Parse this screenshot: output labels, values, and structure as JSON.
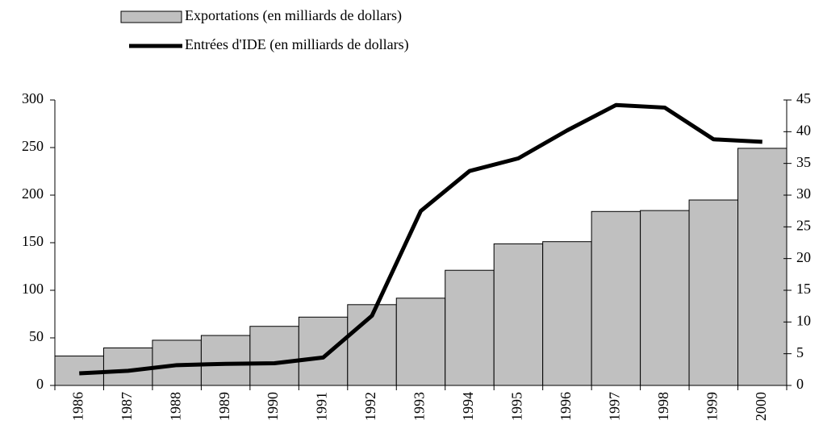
{
  "chart_data": {
    "type": "bar",
    "categories": [
      "1986",
      "1987",
      "1988",
      "1989",
      "1990",
      "1991",
      "1992",
      "1993",
      "1994",
      "1995",
      "1996",
      "1997",
      "1998",
      "1999",
      "2000"
    ],
    "series": [
      {
        "name": "Exportations (en milliards de dollars)",
        "type": "bar",
        "color": "#c0c0c0",
        "values": [
          30.9,
          39.4,
          47.5,
          52.5,
          62.1,
          71.8,
          84.9,
          91.7,
          121.0,
          148.8,
          151.1,
          182.8,
          183.8,
          194.9,
          249.2
        ]
      },
      {
        "name": "Entrées d'IDE (en milliards de dollars)",
        "type": "line",
        "color": "#000000",
        "axis": "y2",
        "values": [
          1.9,
          2.3,
          3.2,
          3.4,
          3.5,
          4.4,
          11.0,
          27.5,
          33.8,
          35.8,
          40.2,
          44.2,
          43.8,
          38.8,
          38.4
        ]
      }
    ],
    "ylim": [
      0,
      300
    ],
    "yticks": [
      0,
      50,
      100,
      150,
      200,
      250,
      300
    ],
    "y2lim": [
      0,
      45
    ],
    "y2ticks": [
      0,
      5,
      10,
      15,
      20,
      25,
      30,
      35,
      40,
      45
    ],
    "grid": false
  }
}
